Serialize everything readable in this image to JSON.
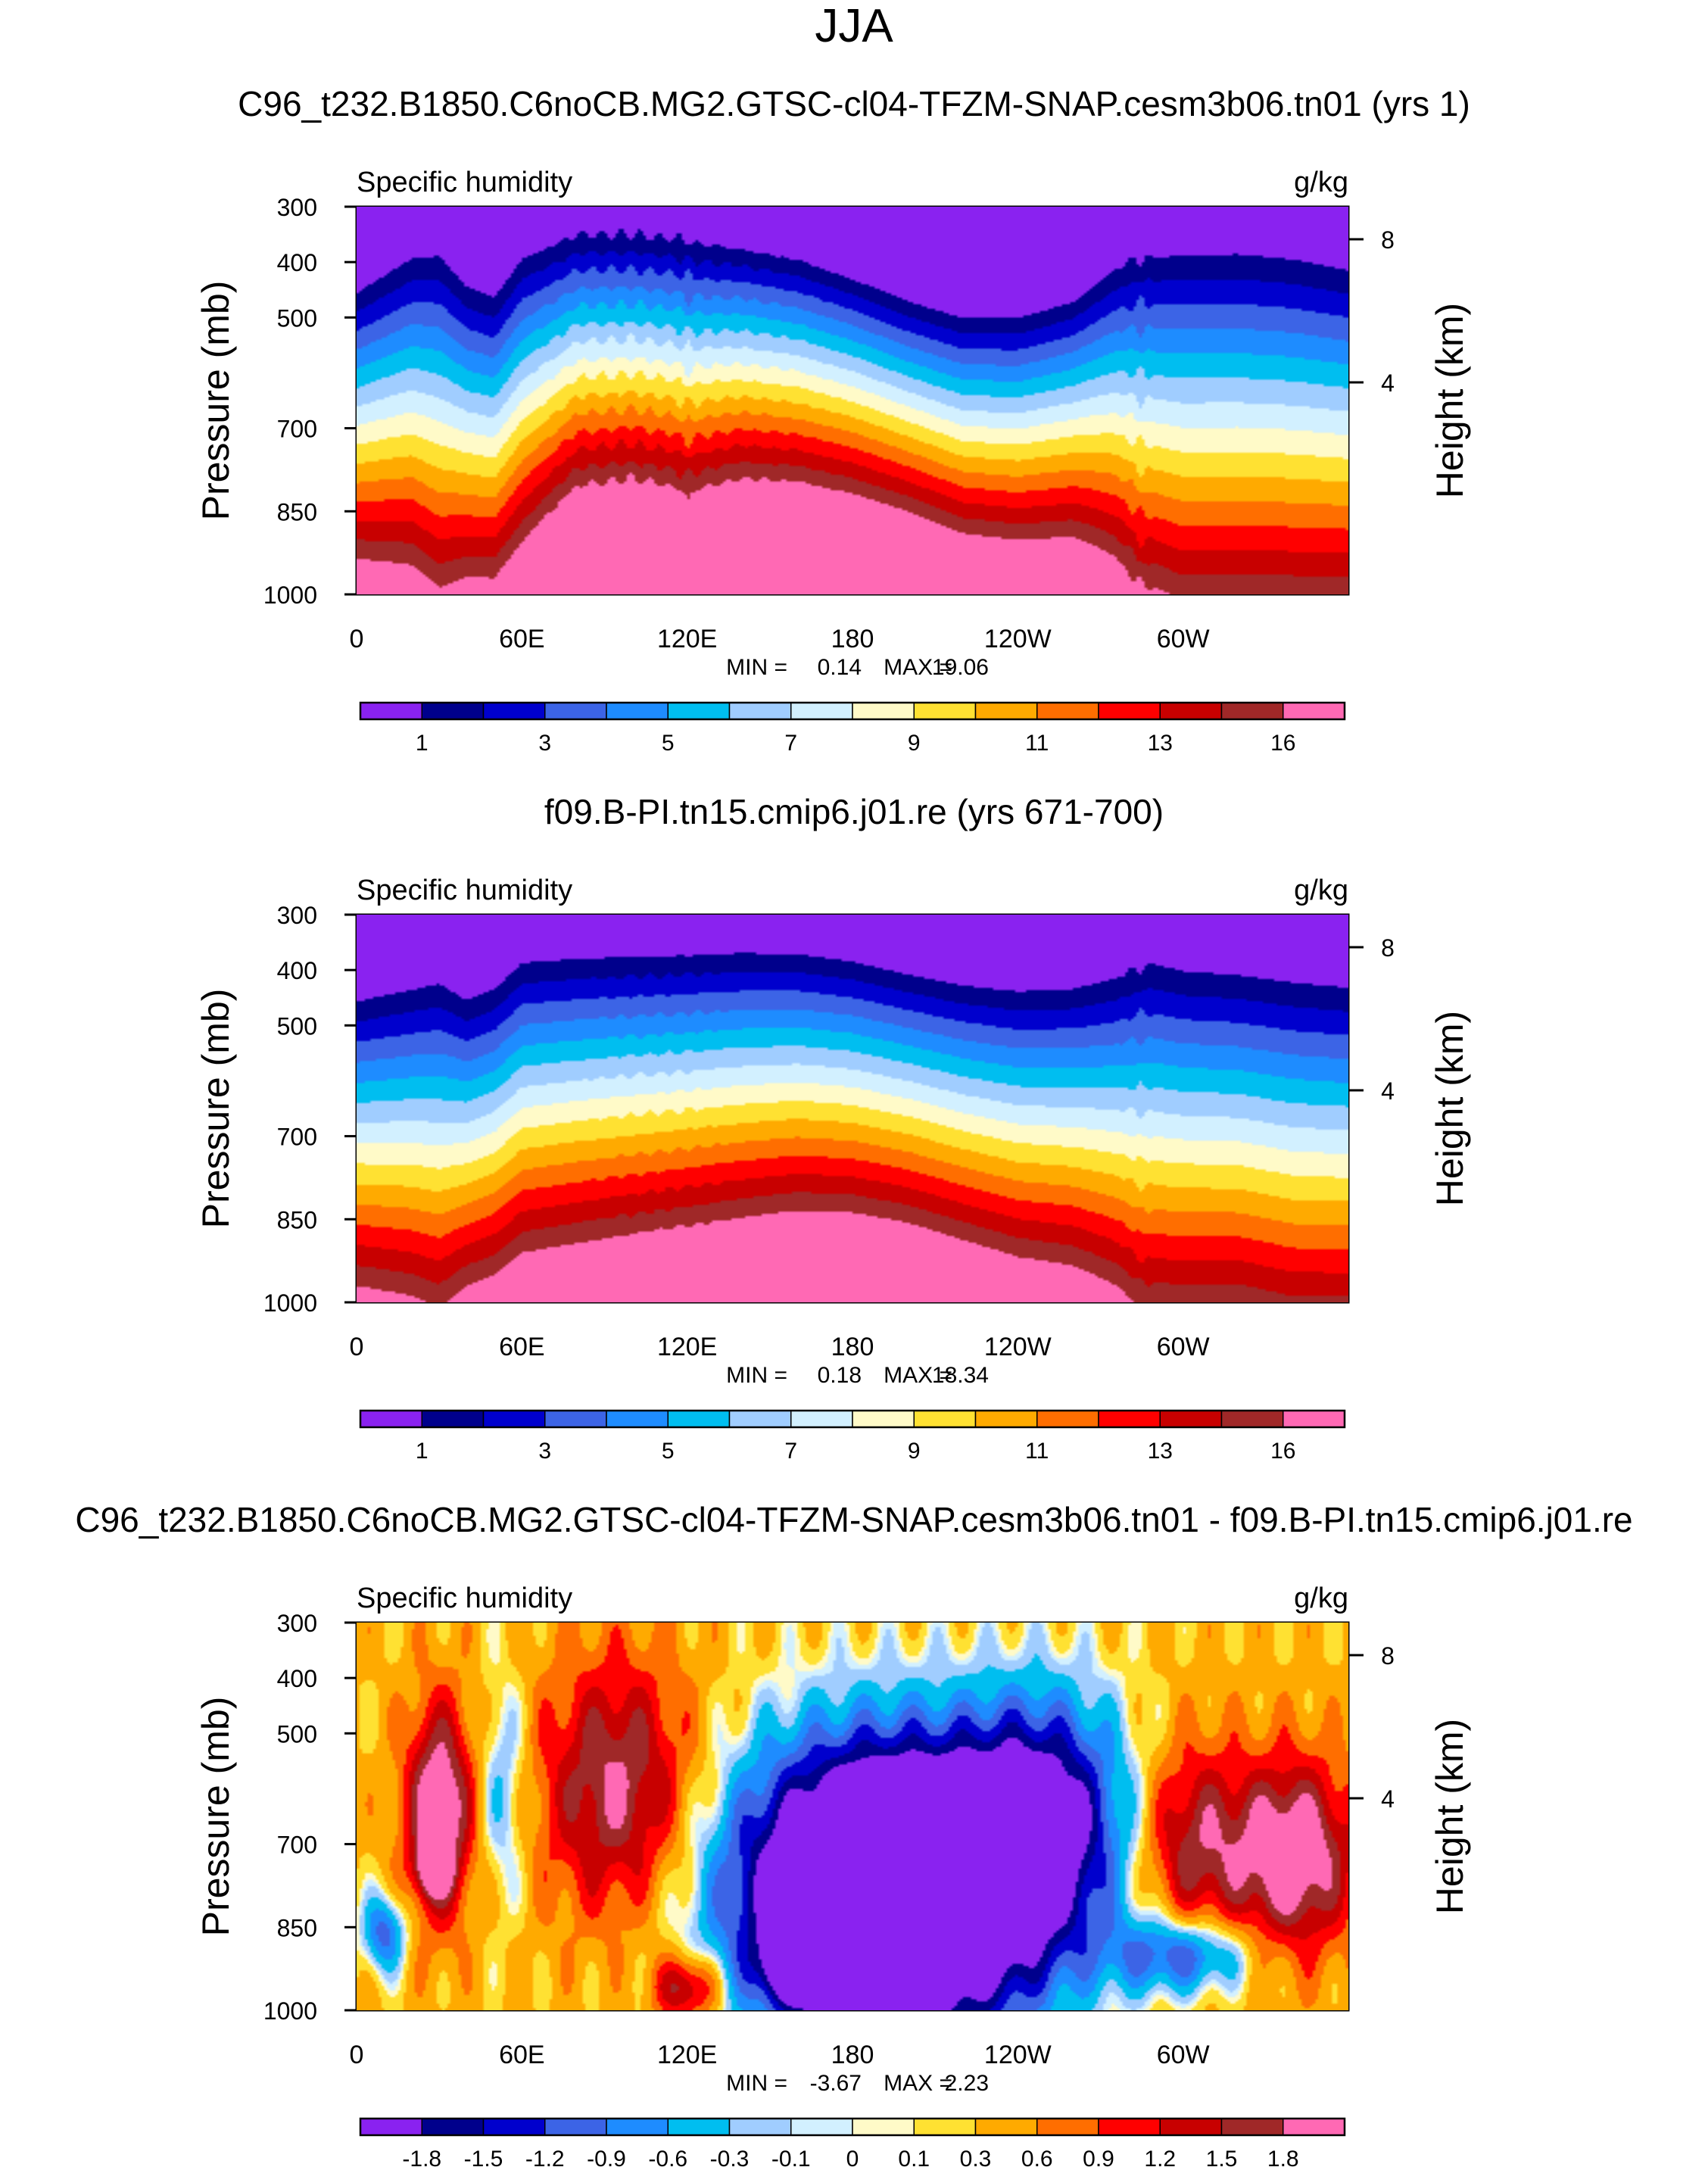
{
  "figure": {
    "title": "JJA"
  },
  "colors": {
    "main": [
      "#8a22f0",
      "#00008c",
      "#0000cd",
      "#3c64e6",
      "#1e8cff",
      "#00bef0",
      "#a0cdff",
      "#d2f0ff",
      "#fffac8",
      "#ffe132",
      "#ffaa00",
      "#ff6e00",
      "#ff0000",
      "#c80000",
      "#a02828",
      "#ff69b4"
    ],
    "diff": [
      "#8a22f0",
      "#00008c",
      "#0000cd",
      "#3c64e6",
      "#1e8cff",
      "#00bef0",
      "#a0cdff",
      "#d2f0ff",
      "#fffac8",
      "#ffe132",
      "#ffaa00",
      "#ff6e00",
      "#ff0000",
      "#c80000",
      "#a02828",
      "#ff69b4"
    ]
  },
  "chart_data": [
    {
      "type": "heatmap",
      "title": "C96_t232.B1850.C6noCB.MG2.GTSC-cl04-TFZM-SNAP.cesm3b06.tn01 (yrs 1)",
      "left_label": "Specific humidity",
      "right_label": "g/kg",
      "ylabel": "Pressure (mb)",
      "ylabel_right": "Height (km)",
      "x_ticks": [
        "0",
        "60E",
        "120E",
        "180",
        "120W",
        "60W"
      ],
      "x_tick_values": [
        0,
        60,
        120,
        180,
        240,
        300
      ],
      "xlim": [
        0,
        360
      ],
      "y_ticks": [
        "300",
        "400",
        "500",
        "700",
        "850",
        "1000"
      ],
      "y_tick_values": [
        300,
        400,
        500,
        700,
        850,
        1000
      ],
      "ylim": [
        300,
        1000
      ],
      "right_ticks": [
        "8",
        "4"
      ],
      "right_tick_values": [
        8,
        4
      ],
      "min_label": "MIN =",
      "min_value": "0.14",
      "max_label": "MAX =",
      "max_value": "19.06",
      "colorbar_labels": [
        "1",
        "3",
        "5",
        "7",
        "9",
        "11",
        "13",
        "16"
      ],
      "colorbar_label_positions": [
        1,
        3,
        5,
        7,
        9,
        11,
        13,
        15
      ],
      "colorbar_bins": 16,
      "field": {
        "lon": [
          0,
          20,
          30,
          40,
          50,
          60,
          80,
          100,
          115,
          120,
          125,
          140,
          160,
          180,
          200,
          220,
          240,
          260,
          275,
          285,
          290,
          300,
          320,
          340,
          360
        ],
        "top": [
          442,
          378,
          372,
          430,
          450,
          380,
          338,
          338,
          345,
          350,
          355,
          365,
          385,
          420,
          460,
          490,
          490,
          460,
          400,
          372,
          375,
          370,
          368,
          378,
          398
        ],
        "spacing": [
          1.55,
          1.5,
          1.4,
          1.45,
          1.45,
          1.62,
          1.95,
          2.0,
          1.95,
          1.9,
          1.95,
          2.05,
          2.05,
          2.0,
          1.9,
          1.75,
          1.7,
          1.7,
          1.55,
          1.4,
          1.4,
          1.35,
          1.35,
          1.35,
          1.35
        ],
        "ripple": [
          0,
          0,
          0,
          0,
          0,
          0,
          0.15,
          0.25,
          0.15,
          0.4,
          0.15,
          0.1,
          0.05,
          0,
          0,
          0,
          0,
          0,
          0,
          0.3,
          0,
          0,
          0,
          0,
          0
        ]
      },
      "terrain": [
        {
          "x0": 6,
          "x1": 13,
          "p": 955
        },
        {
          "x0": 13,
          "x1": 25,
          "p": 950
        },
        {
          "x0": 25,
          "x1": 30,
          "p": 925
        },
        {
          "x0": 30,
          "x1": 35,
          "p": 935
        },
        {
          "x0": 35,
          "x1": 41,
          "p": 960
        },
        {
          "x0": 74,
          "x1": 120,
          "p": 978
        },
        {
          "x0": 281,
          "x1": 284,
          "p": 945
        },
        {
          "x0": 284,
          "x1": 310,
          "p": 980
        }
      ]
    },
    {
      "type": "heatmap",
      "title": "f09.B-PI.tn15.cmip6.j01.re (yrs 671-700)",
      "left_label": "Specific humidity",
      "right_label": "g/kg",
      "ylabel": "Pressure (mb)",
      "ylabel_right": "Height (km)",
      "x_ticks": [
        "0",
        "60E",
        "120E",
        "180",
        "120W",
        "60W"
      ],
      "x_tick_values": [
        0,
        60,
        120,
        180,
        240,
        300
      ],
      "xlim": [
        0,
        360
      ],
      "y_ticks": [
        "300",
        "400",
        "500",
        "700",
        "850",
        "1000"
      ],
      "y_tick_values": [
        300,
        400,
        500,
        700,
        850,
        1000
      ],
      "ylim": [
        300,
        1000
      ],
      "right_ticks": [
        "8",
        "4"
      ],
      "right_tick_values": [
        8,
        4
      ],
      "min_label": "MIN =",
      "min_value": "0.18",
      "max_label": "MAX =",
      "max_value": "18.34",
      "colorbar_labels": [
        "1",
        "3",
        "5",
        "7",
        "9",
        "11",
        "13",
        "16"
      ],
      "colorbar_label_positions": [
        1,
        3,
        5,
        7,
        9,
        11,
        13,
        15
      ],
      "colorbar_bins": 16,
      "field": {
        "lon": [
          0,
          20,
          30,
          40,
          50,
          60,
          80,
          100,
          120,
          140,
          160,
          180,
          200,
          220,
          240,
          260,
          275,
          285,
          290,
          300,
          320,
          340,
          360
        ],
        "top": [
          442,
          420,
          408,
          440,
          420,
          372,
          365,
          362,
          360,
          356,
          358,
          372,
          395,
          415,
          425,
          420,
          400,
          375,
          372,
          385,
          392,
          405,
          415
        ],
        "spacing": [
          1.45,
          1.4,
          1.35,
          1.45,
          1.5,
          1.6,
          1.65,
          1.7,
          1.75,
          1.8,
          1.85,
          1.85,
          1.8,
          1.7,
          1.6,
          1.55,
          1.45,
          1.35,
          1.35,
          1.35,
          1.35,
          1.3,
          1.3
        ],
        "ripple": [
          0,
          0,
          0,
          0,
          0,
          0,
          0,
          0.1,
          0.1,
          0,
          0,
          0,
          0,
          0,
          0,
          0,
          0,
          0.2,
          0,
          0,
          0,
          0,
          0
        ]
      },
      "terrain": [
        {
          "x0": 6,
          "x1": 13,
          "p": 955
        },
        {
          "x0": 13,
          "x1": 25,
          "p": 950
        },
        {
          "x0": 25,
          "x1": 30,
          "p": 925
        },
        {
          "x0": 30,
          "x1": 35,
          "p": 935
        },
        {
          "x0": 35,
          "x1": 41,
          "p": 960
        },
        {
          "x0": 100,
          "x1": 103,
          "p": 965
        },
        {
          "x0": 281,
          "x1": 284,
          "p": 945
        },
        {
          "x0": 284,
          "x1": 310,
          "p": 980
        }
      ]
    },
    {
      "type": "heatmap",
      "title": "C96_t232.B1850.C6noCB.MG2.GTSC-cl04-TFZM-SNAP.cesm3b06.tn01 - f09.B-PI.tn15.cmip6.j01.re",
      "left_label": "Specific humidity",
      "right_label": "g/kg",
      "ylabel": "Pressure (mb)",
      "ylabel_right": "Height (km)",
      "x_ticks": [
        "0",
        "60E",
        "120E",
        "180",
        "120W",
        "60W"
      ],
      "x_tick_values": [
        0,
        60,
        120,
        180,
        240,
        300
      ],
      "xlim": [
        0,
        360
      ],
      "y_ticks": [
        "300",
        "400",
        "500",
        "700",
        "850",
        "1000"
      ],
      "y_tick_values": [
        300,
        400,
        500,
        700,
        850,
        1000
      ],
      "ylim": [
        300,
        1000
      ],
      "right_ticks": [
        "8",
        "4"
      ],
      "right_tick_values": [
        8,
        4
      ],
      "min_label": "MIN =",
      "min_value": "-3.67",
      "max_label": "MAX =",
      "max_value": "2.23",
      "colorbar_labels": [
        "-1.8",
        "-1.5",
        "-1.2",
        "-0.9",
        "-0.6",
        "-0.3",
        "-0.1",
        "0",
        "0.1",
        "0.3",
        "0.6",
        "0.9",
        "1.2",
        "1.5",
        "1.8"
      ],
      "colorbar_label_positions": [
        1,
        2,
        3,
        4,
        5,
        6,
        7,
        8,
        9,
        10,
        11,
        12,
        13,
        14,
        15
      ],
      "colorbar_bins": 16,
      "blobs": [
        {
          "x": 95,
          "p": 600,
          "rx": 28,
          "rp": 230,
          "amp": 1.6
        },
        {
          "x": 30,
          "p": 640,
          "rx": 12,
          "rp": 190,
          "amp": 2.0
        },
        {
          "x": 28,
          "p": 745,
          "rx": 6,
          "rp": 45,
          "amp": 1.5
        },
        {
          "x": 53,
          "p": 600,
          "rx": 9,
          "rp": 210,
          "amp": -0.8
        },
        {
          "x": 10,
          "p": 860,
          "rx": 8,
          "rp": 70,
          "amp": -1.4
        },
        {
          "x": 195,
          "p": 780,
          "rx": 55,
          "rp": 260,
          "amp": -5.0
        },
        {
          "x": 250,
          "p": 640,
          "rx": 30,
          "rp": 220,
          "amp": -1.8
        },
        {
          "x": 165,
          "p": 920,
          "rx": 15,
          "rp": 60,
          "amp": -2.5
        },
        {
          "x": 300,
          "p": 900,
          "rx": 25,
          "rp": 70,
          "amp": -1.6
        },
        {
          "x": 340,
          "p": 720,
          "rx": 22,
          "rp": 170,
          "amp": 2.0
        },
        {
          "x": 303,
          "p": 700,
          "rx": 20,
          "rp": 180,
          "amp": 1.4
        },
        {
          "x": 120,
          "p": 960,
          "rx": 12,
          "rp": 60,
          "amp": 1.6
        }
      ],
      "terrain": [
        {
          "x0": 6,
          "x1": 13,
          "p": 955
        },
        {
          "x0": 13,
          "x1": 25,
          "p": 950
        },
        {
          "x0": 25,
          "x1": 30,
          "p": 925
        },
        {
          "x0": 30,
          "x1": 35,
          "p": 935
        },
        {
          "x0": 35,
          "x1": 41,
          "p": 960
        },
        {
          "x0": 74,
          "x1": 120,
          "p": 978
        },
        {
          "x0": 281,
          "x1": 284,
          "p": 945
        },
        {
          "x0": 284,
          "x1": 310,
          "p": 980
        }
      ]
    }
  ]
}
